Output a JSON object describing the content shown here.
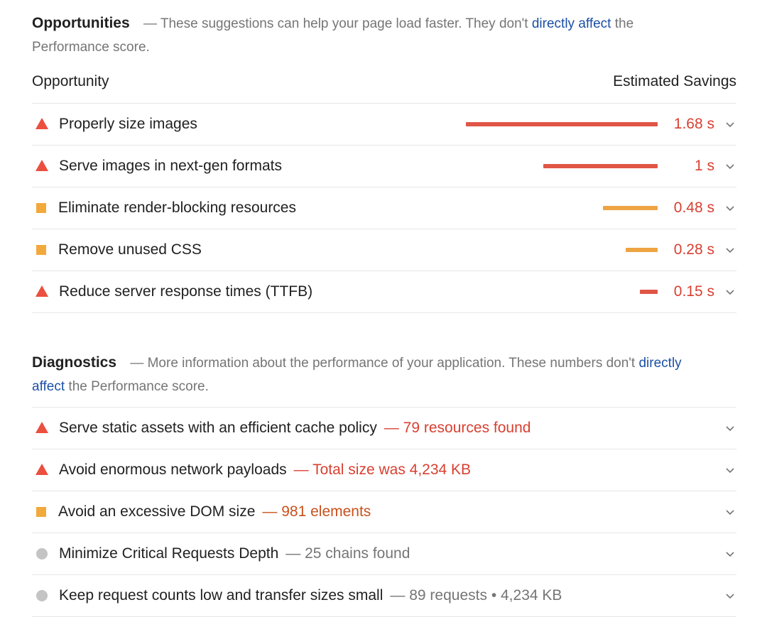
{
  "opportunities": {
    "title": "Opportunities",
    "desc_prefix": "— These suggestions can help your page load faster. They don't",
    "desc_link": "directly affect",
    "desc_suffix": "the Performance score.",
    "col_left": "Opportunity",
    "col_right": "Estimated Savings",
    "items": [
      {
        "label": "Properly size images",
        "value": "1.68 s",
        "savings_s": 1.68,
        "icon": "warning-triangle-icon",
        "color": "#eb4f3f"
      },
      {
        "label": "Serve images in next-gen formats",
        "value": "1 s",
        "savings_s": 1.0,
        "icon": "warning-triangle-icon",
        "color": "#eb4f3f"
      },
      {
        "label": "Eliminate render-blocking resources",
        "value": "0.48 s",
        "savings_s": 0.48,
        "icon": "average-square-icon",
        "color": "#f2a93b"
      },
      {
        "label": "Remove unused CSS",
        "value": "0.28 s",
        "savings_s": 0.28,
        "icon": "average-square-icon",
        "color": "#f2a93b"
      },
      {
        "label": "Reduce server response times (TTFB)",
        "value": "0.15 s",
        "savings_s": 0.15,
        "icon": "warning-triangle-icon",
        "color": "#eb4f3f"
      }
    ]
  },
  "diagnostics": {
    "title": "Diagnostics",
    "desc_prefix": "— More information about the performance of your application. These numbers don't",
    "desc_link": "directly affect",
    "desc_suffix": "the Performance score.",
    "items": [
      {
        "label": "Serve static assets with an efficient cache policy",
        "detail": "— 79 resources found",
        "icon": "warning-triangle-icon",
        "detail_color": "red"
      },
      {
        "label": "Avoid enormous network payloads",
        "detail": "— Total size was 4,234 KB",
        "icon": "warning-triangle-icon",
        "detail_color": "red"
      },
      {
        "label": "Avoid an excessive DOM size",
        "detail": "— 981 elements",
        "icon": "average-square-icon",
        "detail_color": "orange"
      },
      {
        "label": "Minimize Critical Requests Depth",
        "detail": "— 25 chains found",
        "icon": "info-circle-icon",
        "detail_color": "gray"
      },
      {
        "label": "Keep request counts low and transfer sizes small",
        "detail": "— 89 requests • 4,234 KB",
        "icon": "info-circle-icon",
        "detail_color": "gray"
      }
    ]
  }
}
